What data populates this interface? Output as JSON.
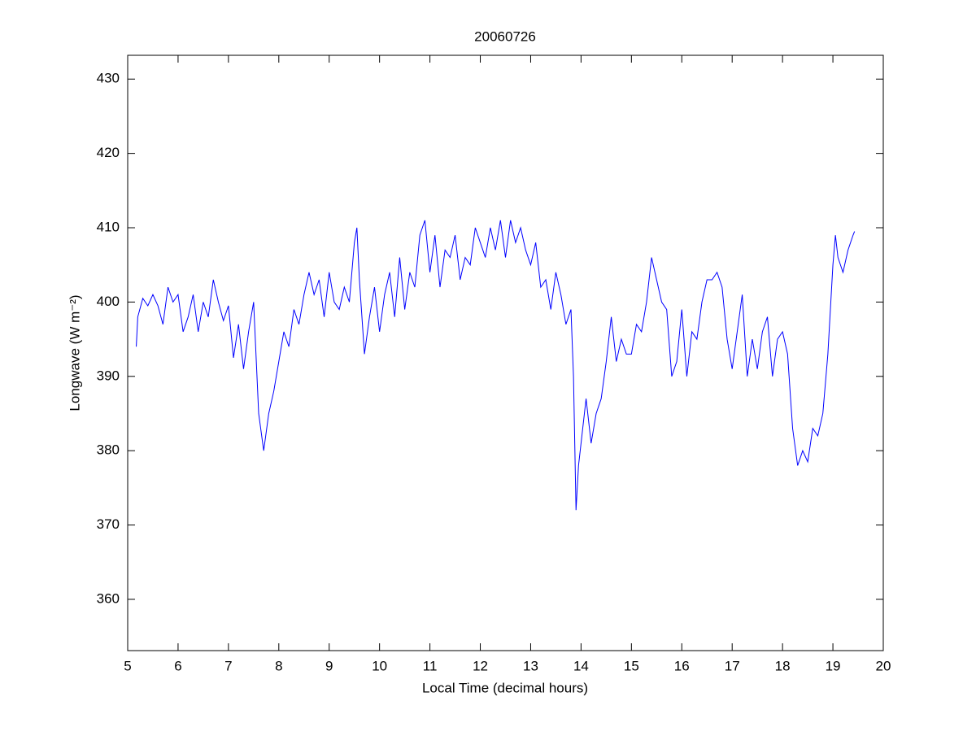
{
  "chart_data": {
    "type": "line",
    "title": "20060726",
    "xlabel": "Local Time (decimal hours)",
    "ylabel": "Longwave (W m⁻²)",
    "xlim": [
      5,
      20
    ],
    "xticks": [
      5,
      6,
      7,
      8,
      9,
      10,
      11,
      12,
      13,
      14,
      15,
      16,
      17,
      18,
      19,
      20
    ],
    "ylim": [
      353.1,
      433.2
    ],
    "yticks": [
      360,
      370,
      380,
      390,
      400,
      410,
      420,
      430
    ],
    "series": [
      {
        "color": "#0000ff",
        "x": [
          5.17,
          5.2,
          5.3,
          5.4,
          5.5,
          5.6,
          5.7,
          5.8,
          5.9,
          6.0,
          6.1,
          6.2,
          6.3,
          6.4,
          6.5,
          6.6,
          6.7,
          6.8,
          6.9,
          7.0,
          7.1,
          7.2,
          7.3,
          7.4,
          7.5,
          7.6,
          7.7,
          7.8,
          7.9,
          8.0,
          8.1,
          8.2,
          8.3,
          8.4,
          8.5,
          8.6,
          8.7,
          8.8,
          8.9,
          9.0,
          9.1,
          9.2,
          9.3,
          9.4,
          9.5,
          9.55,
          9.6,
          9.7,
          9.8,
          9.9,
          10.0,
          10.1,
          10.2,
          10.3,
          10.4,
          10.5,
          10.6,
          10.7,
          10.8,
          10.9,
          11.0,
          11.1,
          11.2,
          11.3,
          11.4,
          11.5,
          11.6,
          11.7,
          11.8,
          11.9,
          12.0,
          12.1,
          12.2,
          12.3,
          12.4,
          12.5,
          12.6,
          12.7,
          12.8,
          12.9,
          13.0,
          13.1,
          13.2,
          13.3,
          13.4,
          13.5,
          13.6,
          13.7,
          13.8,
          13.85,
          13.9,
          13.95,
          14.0,
          14.1,
          14.2,
          14.3,
          14.4,
          14.5,
          14.6,
          14.7,
          14.8,
          14.9,
          15.0,
          15.1,
          15.2,
          15.3,
          15.4,
          15.5,
          15.6,
          15.7,
          15.8,
          15.9,
          16.0,
          16.1,
          16.2,
          16.3,
          16.4,
          16.5,
          16.6,
          16.7,
          16.8,
          16.9,
          17.0,
          17.1,
          17.2,
          17.3,
          17.4,
          17.5,
          17.6,
          17.7,
          17.8,
          17.9,
          18.0,
          18.1,
          18.2,
          18.3,
          18.4,
          18.5,
          18.6,
          18.7,
          18.8,
          18.9,
          19.0,
          19.05,
          19.1,
          19.2,
          19.3,
          19.4,
          19.43
        ],
        "values": [
          394,
          398,
          400.5,
          399.5,
          401,
          399.5,
          397,
          402,
          400,
          401,
          396,
          398,
          401,
          396,
          400,
          398,
          403,
          400,
          397.5,
          399.5,
          392.5,
          397,
          391,
          396,
          400,
          385,
          380,
          385,
          388,
          392,
          396,
          394,
          399,
          397,
          401,
          404,
          401,
          403,
          398,
          404,
          400,
          399,
          402,
          400,
          408,
          410,
          403,
          393,
          398,
          402,
          396,
          401,
          404,
          398,
          406,
          399,
          404,
          402,
          409,
          411,
          404,
          409,
          402,
          407,
          406,
          409,
          403,
          406,
          405,
          410,
          408,
          406,
          410,
          407,
          411,
          406,
          411,
          408,
          410,
          407,
          405,
          408,
          402,
          403,
          399,
          404,
          401,
          397,
          399,
          390,
          372,
          378,
          381,
          387,
          381,
          385,
          387,
          392,
          398,
          392,
          395,
          393,
          393,
          397,
          396,
          400,
          406,
          403,
          400,
          399,
          390,
          392,
          399,
          390,
          396,
          395,
          400,
          403,
          403,
          404,
          402,
          395,
          391,
          396,
          401,
          390,
          395,
          391,
          396,
          398,
          390,
          395,
          396,
          393,
          383,
          378,
          380,
          378.5,
          383,
          382,
          385,
          393,
          405,
          409,
          406,
          404,
          407,
          409,
          409.5
        ]
      }
    ]
  }
}
